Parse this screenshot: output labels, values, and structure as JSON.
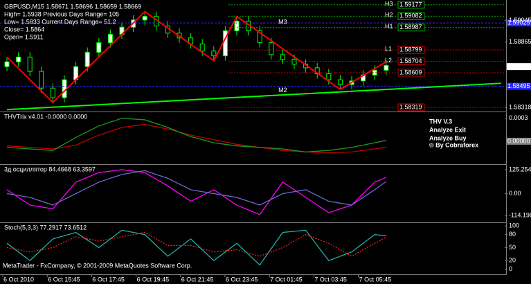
{
  "chart_data": [
    {
      "type": "candlestick",
      "title": "GBPUSD,M15  1.58671 1.58696 1.58659 1.58669",
      "info": [
        "High= 1.5938   Previous Days Range= 105",
        "Low= 1.5833   Current Days Range= 51.2",
        "Close= 1.5864",
        "Open= 1.5911"
      ],
      "open": [
        1.5866,
        1.587,
        1.5874,
        1.5862,
        1.5848,
        1.584,
        1.5855,
        1.5866,
        1.5878,
        1.5886,
        1.5893,
        1.5899,
        1.5905,
        1.5908,
        1.59,
        1.5894,
        1.589,
        1.5885,
        1.5879,
        1.5875,
        1.5896,
        1.5904,
        1.5896,
        1.5886,
        1.5876,
        1.5872,
        1.5868,
        1.5865,
        1.586,
        1.5855,
        1.5851,
        1.5854,
        1.5859,
        1.5863
      ],
      "high": [
        1.5874,
        1.5878,
        1.5878,
        1.5866,
        1.5852,
        1.5859,
        1.587,
        1.5882,
        1.589,
        1.5897,
        1.5903,
        1.5909,
        1.5912,
        1.5912,
        1.5904,
        1.5898,
        1.5894,
        1.5889,
        1.5883,
        1.59,
        1.5908,
        1.5908,
        1.59,
        1.589,
        1.588,
        1.5876,
        1.5872,
        1.5869,
        1.5864,
        1.5859,
        1.5858,
        1.5863,
        1.5867,
        1.5871
      ],
      "low": [
        1.5862,
        1.5866,
        1.5858,
        1.5844,
        1.5836,
        1.5836,
        1.5851,
        1.5862,
        1.5874,
        1.5882,
        1.5889,
        1.5895,
        1.5901,
        1.5896,
        1.589,
        1.5886,
        1.5881,
        1.5875,
        1.5871,
        1.5871,
        1.5892,
        1.5892,
        1.5882,
        1.5872,
        1.5868,
        1.5864,
        1.5861,
        1.5856,
        1.5851,
        1.5847,
        1.5847,
        1.585,
        1.5855,
        1.5859
      ],
      "close": [
        1.587,
        1.5874,
        1.5862,
        1.5848,
        1.584,
        1.5855,
        1.5866,
        1.5878,
        1.5886,
        1.5893,
        1.5899,
        1.5905,
        1.5908,
        1.59,
        1.5894,
        1.589,
        1.5885,
        1.5879,
        1.5875,
        1.5896,
        1.5904,
        1.5896,
        1.5886,
        1.5876,
        1.5872,
        1.5868,
        1.5865,
        1.586,
        1.5855,
        1.5851,
        1.5854,
        1.5859,
        1.5863,
        1.5867
      ],
      "up_color": "#ffffff",
      "down_color": "#000000",
      "wick_color": "#00ff00",
      "ylim": [
        1.5829,
        1.59194
      ],
      "yticks": [
        1.59045,
        1.58865,
        1.58318
      ],
      "current": {
        "value": 1.5866,
        "label": "1.58660"
      },
      "levels": [
        {
          "name": "H3",
          "value": 1.59177,
          "color": "#00b000"
        },
        {
          "name": "H2",
          "value": 1.59082,
          "color": "#00b000"
        },
        {
          "name": "H1",
          "value": 1.58987,
          "color": "#00b000"
        },
        {
          "name": "L1",
          "value": 1.58799,
          "color": "#d00000"
        },
        {
          "name": "L2",
          "value": 1.58704,
          "color": "#d00000"
        },
        {
          "value": 1.58609,
          "color": "#d00000"
        },
        {
          "value": 1.58319,
          "color": "#d00000"
        }
      ],
      "lines": [
        {
          "value": 1.59025,
          "color": "#2828ff"
        },
        {
          "value": 1.58495,
          "color": "#2828ff"
        }
      ],
      "zigzag": {
        "color": "#ff0000",
        "x": [
          0,
          4,
          12,
          18,
          20,
          29,
          33
        ],
        "values": [
          1.5874,
          1.5836,
          1.5912,
          1.5871,
          1.5908,
          1.5847,
          1.587
        ]
      },
      "trend_line": {
        "color": "#00ff00",
        "x": [
          0,
          43
        ],
        "values": [
          1.583,
          1.5852
        ]
      },
      "markers": [
        {
          "text": "M3",
          "x": 24,
          "value": 1.5903
        },
        {
          "text": "M2",
          "x": 24,
          "value": 1.5846
        }
      ]
    },
    {
      "type": "line",
      "title": "THVTrix v4.01 -0.0000 0.0000",
      "x": [
        0,
        2,
        4,
        6,
        8,
        10,
        12,
        14,
        16,
        18,
        20,
        22,
        24,
        26,
        28,
        30,
        32,
        33
      ],
      "series": [
        {
          "color": "#c00000",
          "values": [
            -6e-05,
            -8e-05,
            -0.0001,
            -5e-05,
            8e-05,
            0.00018,
            0.00022,
            0.00016,
            8e-05,
            2e-05,
            -4e-05,
            -8e-05,
            -0.00012,
            -0.00014,
            -0.00015,
            -0.00014,
            -0.0001,
            -8e-05
          ]
        },
        {
          "color": "#1e9a1e",
          "values": [
            -8e-05,
            -0.0001,
            -0.00012,
            5e-05,
            0.0002,
            0.0003,
            0.00028,
            0.00018,
            6e-05,
            -2e-05,
            -6e-05,
            -8e-05,
            -0.0001,
            -0.00014,
            -0.00012,
            -8e-05,
            -2e-05,
            1e-05
          ]
        }
      ],
      "ylim": [
        -0.00029,
        0.00037
      ],
      "yticks": [
        0.0003
      ],
      "current": {
        "value": 0,
        "label": "0.00000"
      },
      "watermark": [
        {
          "text": "THV V.3",
          "color": "#5a5a3a"
        },
        {
          "text": "Analyze Exit",
          "color": "#ffd700"
        },
        {
          "text": "Analyze Buy",
          "color": "#00e000"
        },
        {
          "text": "© By Cobraforex",
          "color": "#2e6b2e"
        }
      ]
    },
    {
      "type": "line",
      "title": "3д осциллятор 84.4668 63.3597",
      "x": [
        0,
        2,
        4,
        6,
        8,
        10,
        12,
        14,
        16,
        18,
        20,
        22,
        24,
        26,
        28,
        30,
        32,
        33
      ],
      "series": [
        {
          "color": "#ff00ff",
          "values": [
            20,
            -60,
            -80,
            60,
            110,
            125,
            110,
            40,
            -40,
            20,
            -60,
            -110,
            60,
            -20,
            -100,
            -60,
            60,
            84.4668
          ]
        },
        {
          "color": "#6a6acd",
          "values": [
            0,
            -20,
            -60,
            0,
            60,
            100,
            120,
            80,
            20,
            0,
            -20,
            -60,
            0,
            20,
            -40,
            -60,
            20,
            63.3597
          ]
        }
      ],
      "ylim": [
        -146.8,
        146.7
      ],
      "yticks": [
        125.2546,
        {
          "value": 0,
          "label": "0.00"
        },
        -114.1962
      ]
    },
    {
      "type": "line",
      "title": "Stoch(5,3,3) 77.2917 73.6512",
      "x": [
        0,
        2,
        4,
        6,
        8,
        10,
        12,
        14,
        16,
        18,
        20,
        22,
        24,
        26,
        28,
        30,
        32,
        33
      ],
      "series": [
        {
          "color": "#20b2aa",
          "values": [
            60,
            20,
            70,
            85,
            50,
            90,
            80,
            30,
            70,
            20,
            60,
            10,
            85,
            90,
            20,
            40,
            80,
            77.2917
          ]
        },
        {
          "color": "#ff2020",
          "dashed": true,
          "values": [
            50,
            40,
            50,
            75,
            65,
            75,
            85,
            55,
            55,
            40,
            45,
            30,
            50,
            80,
            60,
            30,
            60,
            73.6512
          ]
        }
      ],
      "ylim": [
        -10,
        105
      ],
      "yticks": [
        100,
        80,
        50,
        20,
        0
      ]
    }
  ],
  "time_axis": [
    "6 Oct 2010",
    "6 Oct 15:45",
    "6 Oct 17:45",
    "6 Oct 19:45",
    "6 Oct 21:45",
    "6 Oct 23:45",
    "7 Oct 01:45",
    "7 Oct 03:45",
    "7 Oct 05:45"
  ],
  "footer": "MetaTrader - FxCompany, © 2001-2009 MetaQuotes Software Corp."
}
